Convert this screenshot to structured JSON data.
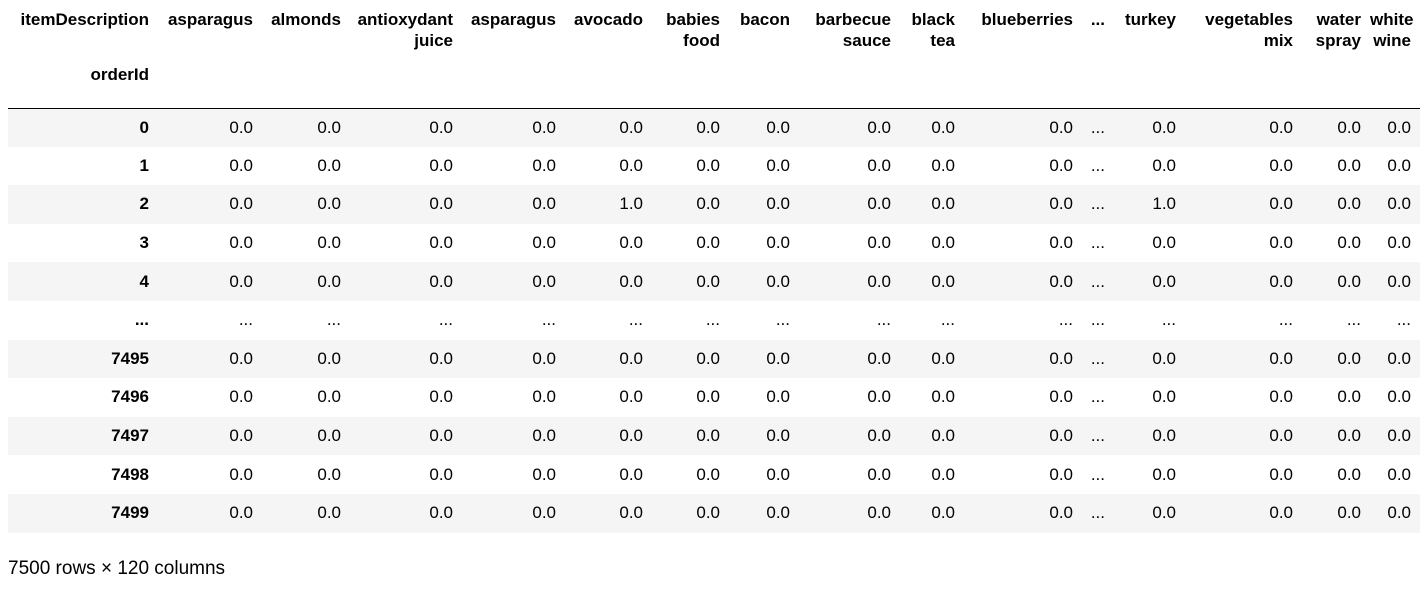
{
  "table": {
    "columns_name": "itemDescription",
    "index_name": "orderId",
    "columns": [
      [
        "asparagus"
      ],
      [
        "almonds"
      ],
      [
        "antioxydant",
        "juice"
      ],
      [
        "asparagus"
      ],
      [
        "avocado"
      ],
      [
        "babies",
        "food"
      ],
      [
        "bacon"
      ],
      [
        "barbecue",
        "sauce"
      ],
      [
        "black",
        "tea"
      ],
      [
        "blueberries"
      ],
      [
        "..."
      ],
      [
        "turkey"
      ],
      [
        "vegetables",
        "mix"
      ],
      [
        "water",
        "spray"
      ],
      [
        "white",
        "wine"
      ]
    ],
    "rows": [
      {
        "index": "0",
        "values": [
          "0.0",
          "0.0",
          "0.0",
          "0.0",
          "0.0",
          "0.0",
          "0.0",
          "0.0",
          "0.0",
          "0.0",
          "...",
          "0.0",
          "0.0",
          "0.0",
          "0.0"
        ]
      },
      {
        "index": "1",
        "values": [
          "0.0",
          "0.0",
          "0.0",
          "0.0",
          "0.0",
          "0.0",
          "0.0",
          "0.0",
          "0.0",
          "0.0",
          "...",
          "0.0",
          "0.0",
          "0.0",
          "0.0"
        ]
      },
      {
        "index": "2",
        "values": [
          "0.0",
          "0.0",
          "0.0",
          "0.0",
          "1.0",
          "0.0",
          "0.0",
          "0.0",
          "0.0",
          "0.0",
          "...",
          "1.0",
          "0.0",
          "0.0",
          "0.0"
        ]
      },
      {
        "index": "3",
        "values": [
          "0.0",
          "0.0",
          "0.0",
          "0.0",
          "0.0",
          "0.0",
          "0.0",
          "0.0",
          "0.0",
          "0.0",
          "...",
          "0.0",
          "0.0",
          "0.0",
          "0.0"
        ]
      },
      {
        "index": "4",
        "values": [
          "0.0",
          "0.0",
          "0.0",
          "0.0",
          "0.0",
          "0.0",
          "0.0",
          "0.0",
          "0.0",
          "0.0",
          "...",
          "0.0",
          "0.0",
          "0.0",
          "0.0"
        ]
      },
      {
        "index": "...",
        "values": [
          "...",
          "...",
          "...",
          "...",
          "...",
          "...",
          "...",
          "...",
          "...",
          "...",
          "...",
          "...",
          "...",
          "...",
          "..."
        ]
      },
      {
        "index": "7495",
        "values": [
          "0.0",
          "0.0",
          "0.0",
          "0.0",
          "0.0",
          "0.0",
          "0.0",
          "0.0",
          "0.0",
          "0.0",
          "...",
          "0.0",
          "0.0",
          "0.0",
          "0.0"
        ]
      },
      {
        "index": "7496",
        "values": [
          "0.0",
          "0.0",
          "0.0",
          "0.0",
          "0.0",
          "0.0",
          "0.0",
          "0.0",
          "0.0",
          "0.0",
          "...",
          "0.0",
          "0.0",
          "0.0",
          "0.0"
        ]
      },
      {
        "index": "7497",
        "values": [
          "0.0",
          "0.0",
          "0.0",
          "0.0",
          "0.0",
          "0.0",
          "0.0",
          "0.0",
          "0.0",
          "0.0",
          "...",
          "0.0",
          "0.0",
          "0.0",
          "0.0"
        ]
      },
      {
        "index": "7498",
        "values": [
          "0.0",
          "0.0",
          "0.0",
          "0.0",
          "0.0",
          "0.0",
          "0.0",
          "0.0",
          "0.0",
          "0.0",
          "...",
          "0.0",
          "0.0",
          "0.0",
          "0.0"
        ]
      },
      {
        "index": "7499",
        "values": [
          "0.0",
          "0.0",
          "0.0",
          "0.0",
          "0.0",
          "0.0",
          "0.0",
          "0.0",
          "0.0",
          "0.0",
          "...",
          "0.0",
          "0.0",
          "0.0",
          "0.0"
        ]
      }
    ],
    "shape_text": "7500 rows × 120 columns"
  },
  "colors": {
    "stripe": "#f5f5f5",
    "background": "#ffffff",
    "text": "#000000"
  }
}
